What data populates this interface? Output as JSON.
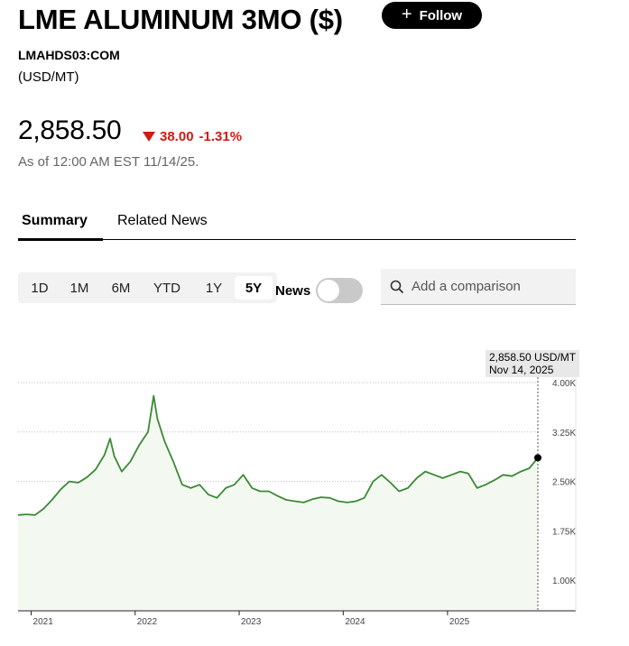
{
  "header": {
    "title": "LME ALUMINUM 3MO ($)",
    "follow_label": "Follow",
    "ticker": "LMAHDS03:COM",
    "units": "(USD/MT)"
  },
  "quote": {
    "price": "2,858.50",
    "change": "38.00",
    "change_pct": "-1.31%",
    "as_of": "As of 12:00 AM EST 11/14/25."
  },
  "tabs": [
    {
      "label": "Summary",
      "active": true
    },
    {
      "label": "Related News",
      "active": false
    }
  ],
  "ranges": [
    "1D",
    "1M",
    "6M",
    "YTD",
    "1Y",
    "5Y"
  ],
  "active_range": "5Y",
  "news_toggle": {
    "label": "News",
    "on": false
  },
  "search": {
    "placeholder": "Add a comparison"
  },
  "tooltip": {
    "value": "2,858.50 USD/MT",
    "date": "Nov 14, 2025"
  },
  "colors": {
    "line": "#3b8a35",
    "down": "#d21a10",
    "fill": "#f3f8f1"
  },
  "chart_data": {
    "type": "area",
    "y_ticks": [
      "4.00K",
      "3.25K",
      "2.50K",
      "1.75K",
      "1.00K"
    ],
    "x_ticks": [
      "2021",
      "2022",
      "2023",
      "2024",
      "2025"
    ],
    "ylim": [
      550,
      4000
    ],
    "grid": true,
    "series": [
      {
        "x": [
          "2020-11-16",
          "2020-12-15",
          "2021-01-15",
          "2021-02-15",
          "2021-03-15",
          "2021-04-15",
          "2021-05-15",
          "2021-06-15",
          "2021-07-15",
          "2021-08-15",
          "2021-09-15",
          "2021-10-05",
          "2021-10-20",
          "2021-11-15",
          "2021-12-15",
          "2022-01-15",
          "2022-02-15",
          "2022-03-07",
          "2022-03-20",
          "2022-04-15",
          "2022-05-15",
          "2022-06-15",
          "2022-07-15",
          "2022-08-15",
          "2022-09-15",
          "2022-10-15",
          "2022-11-15",
          "2022-12-15",
          "2023-01-15",
          "2023-02-15",
          "2023-03-15",
          "2023-04-15",
          "2023-05-15",
          "2023-06-15",
          "2023-07-15",
          "2023-08-15",
          "2023-09-15",
          "2023-10-15",
          "2023-11-15",
          "2023-12-15",
          "2024-01-15",
          "2024-02-15",
          "2024-03-15",
          "2024-04-15",
          "2024-05-15",
          "2024-06-15",
          "2024-07-15",
          "2024-08-15",
          "2024-09-15",
          "2024-10-15",
          "2024-11-15",
          "2024-12-15",
          "2025-01-15",
          "2025-02-15",
          "2025-03-15",
          "2025-04-15",
          "2025-05-15",
          "2025-06-15",
          "2025-07-15",
          "2025-08-15",
          "2025-09-15",
          "2025-10-15",
          "2025-11-14"
        ],
        "values": [
          1990,
          2000,
          1990,
          2090,
          2220,
          2380,
          2500,
          2480,
          2560,
          2680,
          2900,
          3150,
          2880,
          2650,
          2800,
          3050,
          3250,
          3800,
          3450,
          3100,
          2800,
          2450,
          2400,
          2450,
          2300,
          2250,
          2400,
          2450,
          2600,
          2400,
          2350,
          2350,
          2280,
          2220,
          2200,
          2180,
          2230,
          2260,
          2250,
          2200,
          2180,
          2200,
          2250,
          2500,
          2600,
          2480,
          2350,
          2400,
          2550,
          2650,
          2600,
          2550,
          2600,
          2650,
          2620,
          2400,
          2450,
          2520,
          2600,
          2580,
          2650,
          2700,
          2858.5
        ]
      }
    ]
  }
}
